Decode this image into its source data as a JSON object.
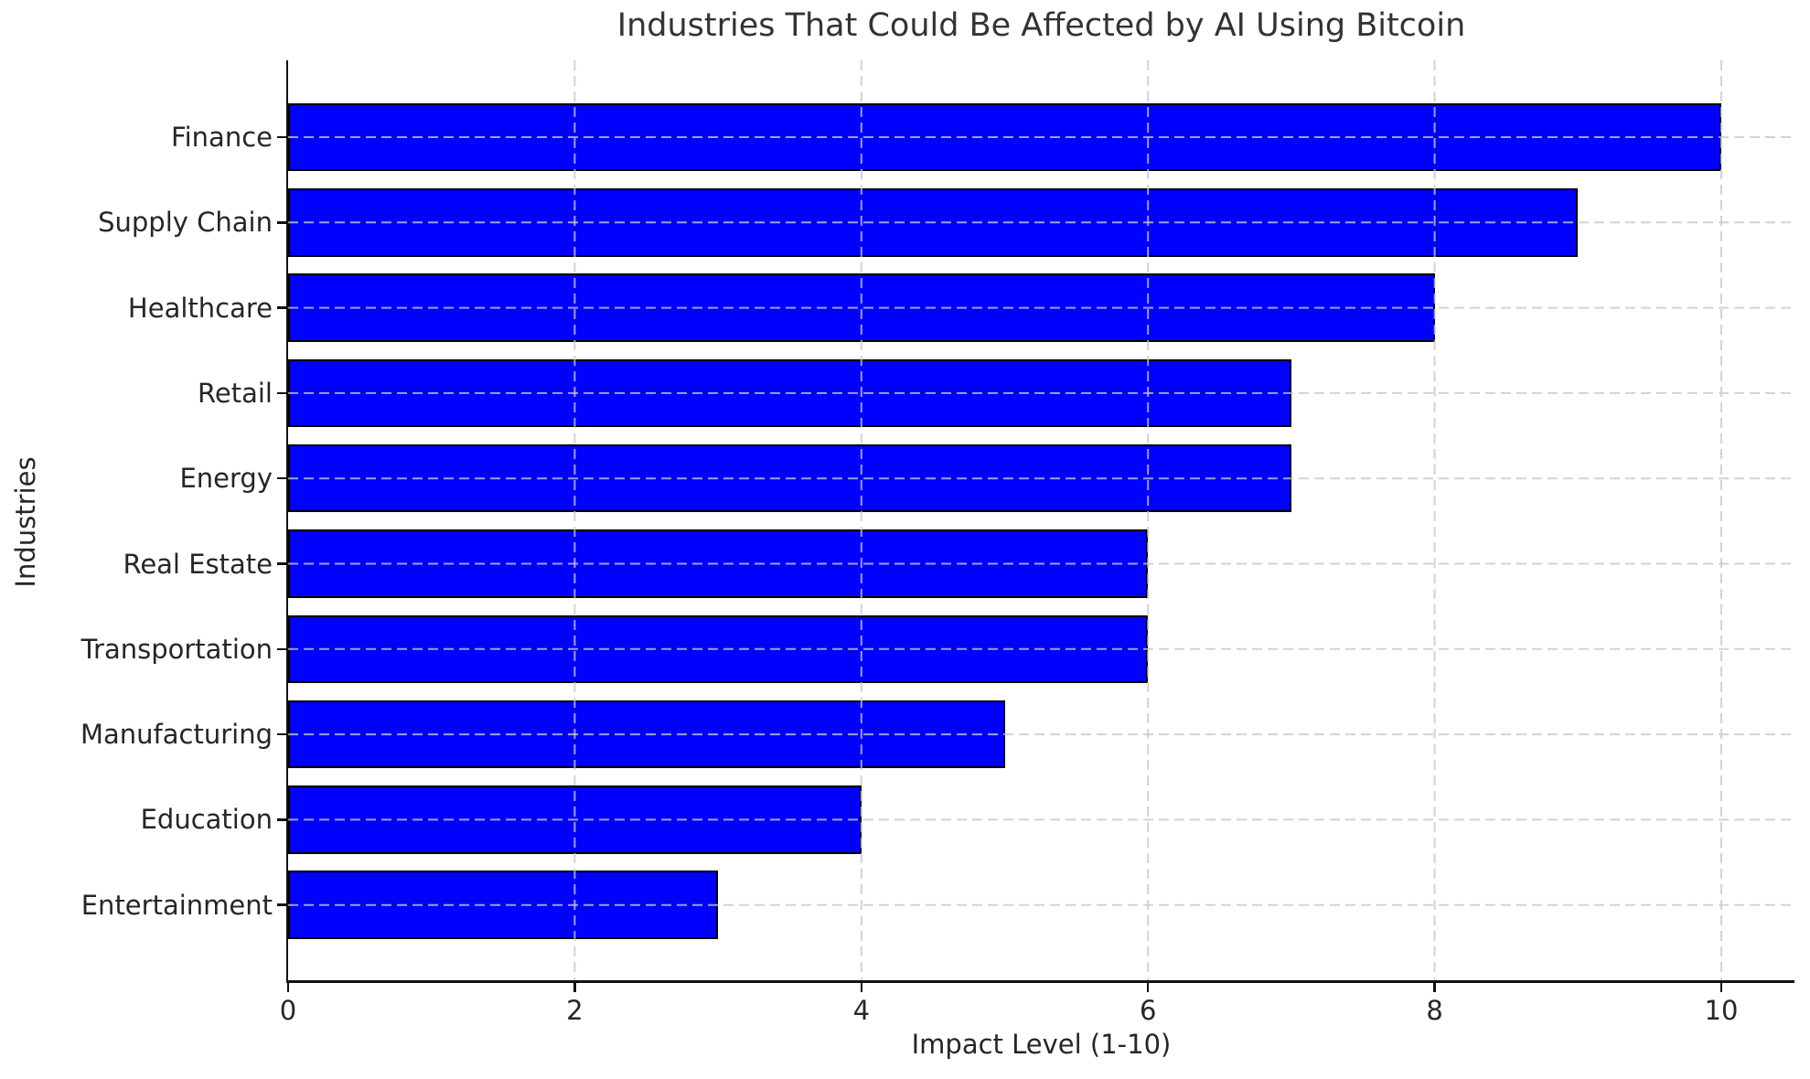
{
  "chart_data": {
    "type": "bar",
    "orientation": "horizontal",
    "title": "Industries That Could Be Affected by AI Using Bitcoin",
    "xlabel": "Impact Level (1-10)",
    "ylabel": "Industries",
    "categories": [
      "Finance",
      "Supply Chain",
      "Healthcare",
      "Retail",
      "Energy",
      "Real Estate",
      "Transportation",
      "Manufacturing",
      "Education",
      "Entertainment"
    ],
    "values": [
      10,
      9,
      8,
      7,
      7,
      6,
      6,
      5,
      4,
      3
    ],
    "x_ticks": [
      0,
      2,
      4,
      6,
      8,
      10
    ],
    "xlim": [
      0,
      10.5
    ],
    "grid": true,
    "grid_style": "dashed",
    "legend": "none",
    "bar_color": "#0000ff",
    "bar_edge_color": "#000000",
    "grid_color": "#c8c8c8",
    "background_color": "#ffffff"
  }
}
